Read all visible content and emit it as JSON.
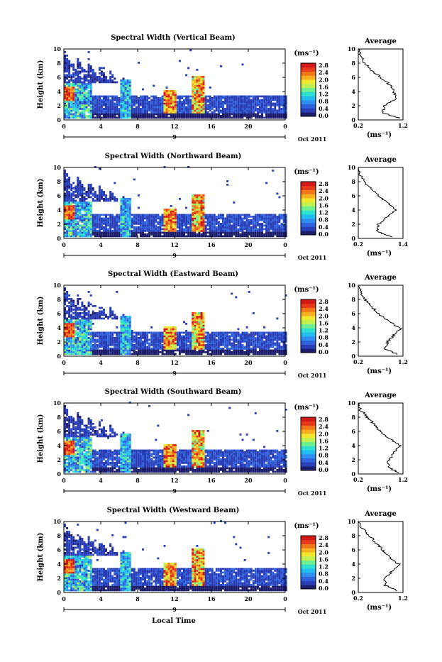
{
  "chart_data": {
    "type": "heatmap",
    "xlabel": "Local Time",
    "date_label": "Oct 2011",
    "day_marker": "9",
    "colorbar": {
      "unit": "(ms⁻¹)",
      "ticks": [
        "2.8",
        "2.4",
        "2.0",
        "1.6",
        "1.2",
        "0.8",
        "0.4",
        "0.0"
      ],
      "colors": [
        "#1d1d6b",
        "#2a3eb8",
        "#2f62dc",
        "#2f8ef0",
        "#22bcf0",
        "#2fe0d0",
        "#6ff090",
        "#bff050",
        "#f0e830",
        "#f8b020",
        "#f07818",
        "#e63a1a",
        "#d41818"
      ]
    },
    "panels": [
      {
        "title": "Spectral Width (Vertical Beam)",
        "ylabel": "Height (km)",
        "x_ticks": [
          "0",
          "4",
          "8",
          "12",
          "16",
          "20",
          "0"
        ],
        "y_ticks": [
          "0",
          "2",
          "4",
          "6",
          "8",
          "10"
        ],
        "avg": {
          "title": "Average",
          "xlabel": "(ms⁻¹)",
          "x_ticks": [
            "0.2",
            "1.2"
          ],
          "y_ticks": [
            "0",
            "2",
            "4",
            "6",
            "8",
            "10"
          ],
          "xlim": [
            0.2,
            1.2
          ],
          "height_km": [
            0.2,
            1,
            2,
            3,
            4,
            5,
            6,
            7,
            8,
            9,
            10
          ],
          "value": [
            1.15,
            0.75,
            0.78,
            1.05,
            1.0,
            0.9,
            0.7,
            0.5,
            0.35,
            0.25,
            0.2
          ]
        }
      },
      {
        "title": "Spectral Width (Northward Beam)",
        "ylabel": "Height (km)",
        "x_ticks": [
          "0",
          "4",
          "8",
          "12",
          "16",
          "20",
          "0"
        ],
        "y_ticks": [
          "0",
          "2",
          "4",
          "6",
          "8",
          "10"
        ],
        "avg": {
          "title": "Average",
          "xlabel": "(ms⁻¹)",
          "x_ticks": [
            "0.2",
            "1.4"
          ],
          "y_ticks": [
            "0",
            "2",
            "4",
            "6",
            "8",
            "10"
          ],
          "xlim": [
            0.2,
            1.4
          ],
          "height_km": [
            0.2,
            1,
            2,
            3,
            4,
            5,
            6,
            7,
            8,
            9,
            10
          ],
          "value": [
            1.1,
            0.7,
            0.75,
            0.95,
            1.2,
            1.0,
            0.75,
            0.55,
            0.35,
            0.25,
            0.2
          ]
        }
      },
      {
        "title": "Spectral Width (Eastward Beam)",
        "ylabel": "Height (km)",
        "x_ticks": [
          "0",
          "4",
          "8",
          "12",
          "16",
          "20",
          "0"
        ],
        "y_ticks": [
          "0",
          "2",
          "4",
          "6",
          "8",
          "10"
        ],
        "avg": {
          "title": "Average",
          "xlabel": "(ms⁻¹)",
          "x_ticks": [
            "0.2",
            "1.2"
          ],
          "y_ticks": [
            "0",
            "2",
            "4",
            "6",
            "8",
            "10"
          ],
          "xlim": [
            0.2,
            1.2
          ],
          "height_km": [
            0.2,
            1,
            2,
            3,
            4,
            5,
            6,
            7,
            8,
            9,
            10
          ],
          "value": [
            1.1,
            0.8,
            0.85,
            1.0,
            1.15,
            0.85,
            0.65,
            0.5,
            0.35,
            0.25,
            0.2
          ]
        }
      },
      {
        "title": "Spectral Width (Southward Beam)",
        "ylabel": "Height (km)",
        "x_ticks": [
          "0",
          "4",
          "8",
          "12",
          "16",
          "20",
          "0"
        ],
        "y_ticks": [
          "0",
          "2",
          "4",
          "6",
          "8",
          "10"
        ],
        "avg": {
          "title": "Average",
          "xlabel": "(ms⁻¹)",
          "x_ticks": [
            "0.2",
            "1.2"
          ],
          "y_ticks": [
            "0",
            "2",
            "4",
            "6",
            "8",
            "10"
          ],
          "xlim": [
            0.2,
            1.2
          ],
          "height_km": [
            0.2,
            1,
            2,
            3,
            4,
            5,
            6,
            7,
            8,
            9,
            10
          ],
          "value": [
            1.1,
            0.85,
            0.9,
            1.0,
            1.15,
            0.9,
            0.7,
            0.55,
            0.4,
            0.25,
            0.2
          ]
        }
      },
      {
        "title": "Spectral Width (Westward Beam)",
        "ylabel": "Height (km)",
        "x_ticks": [
          "0",
          "4",
          "8",
          "12",
          "16",
          "20",
          "0"
        ],
        "y_ticks": [
          "0",
          "2",
          "4",
          "6",
          "8",
          "10"
        ],
        "avg": {
          "title": "Average",
          "xlabel": "(ms⁻¹)",
          "x_ticks": [
            "0.2",
            "1.2"
          ],
          "y_ticks": [
            "0",
            "2",
            "4",
            "6",
            "8",
            "10"
          ],
          "xlim": [
            0.2,
            1.2
          ],
          "height_km": [
            0.2,
            1,
            2,
            3,
            4,
            5,
            6,
            7,
            8,
            9,
            10
          ],
          "value": [
            1.1,
            0.8,
            0.8,
            0.95,
            1.1,
            0.9,
            0.75,
            0.6,
            0.45,
            0.3,
            0.2
          ]
        }
      }
    ]
  }
}
